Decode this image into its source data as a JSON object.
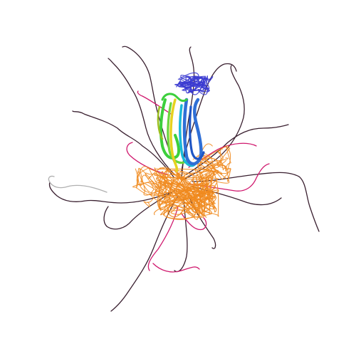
{
  "image": {
    "subject": "protein-structure-ensemble-cartoon",
    "background": "#ffffff",
    "colors": {
      "n_terminus": "#3b3bd0",
      "beta_blue": "#2f6fd6",
      "beta_cyan": "#19b8d8",
      "beta_green": "#3ccf3c",
      "beta_yellow": "#e6d21e",
      "core_orange": "#f08a1e",
      "loop_magenta": "#d0196e",
      "tail_dark": "#3a2030",
      "tail_grey": "#b0b0b0"
    }
  }
}
